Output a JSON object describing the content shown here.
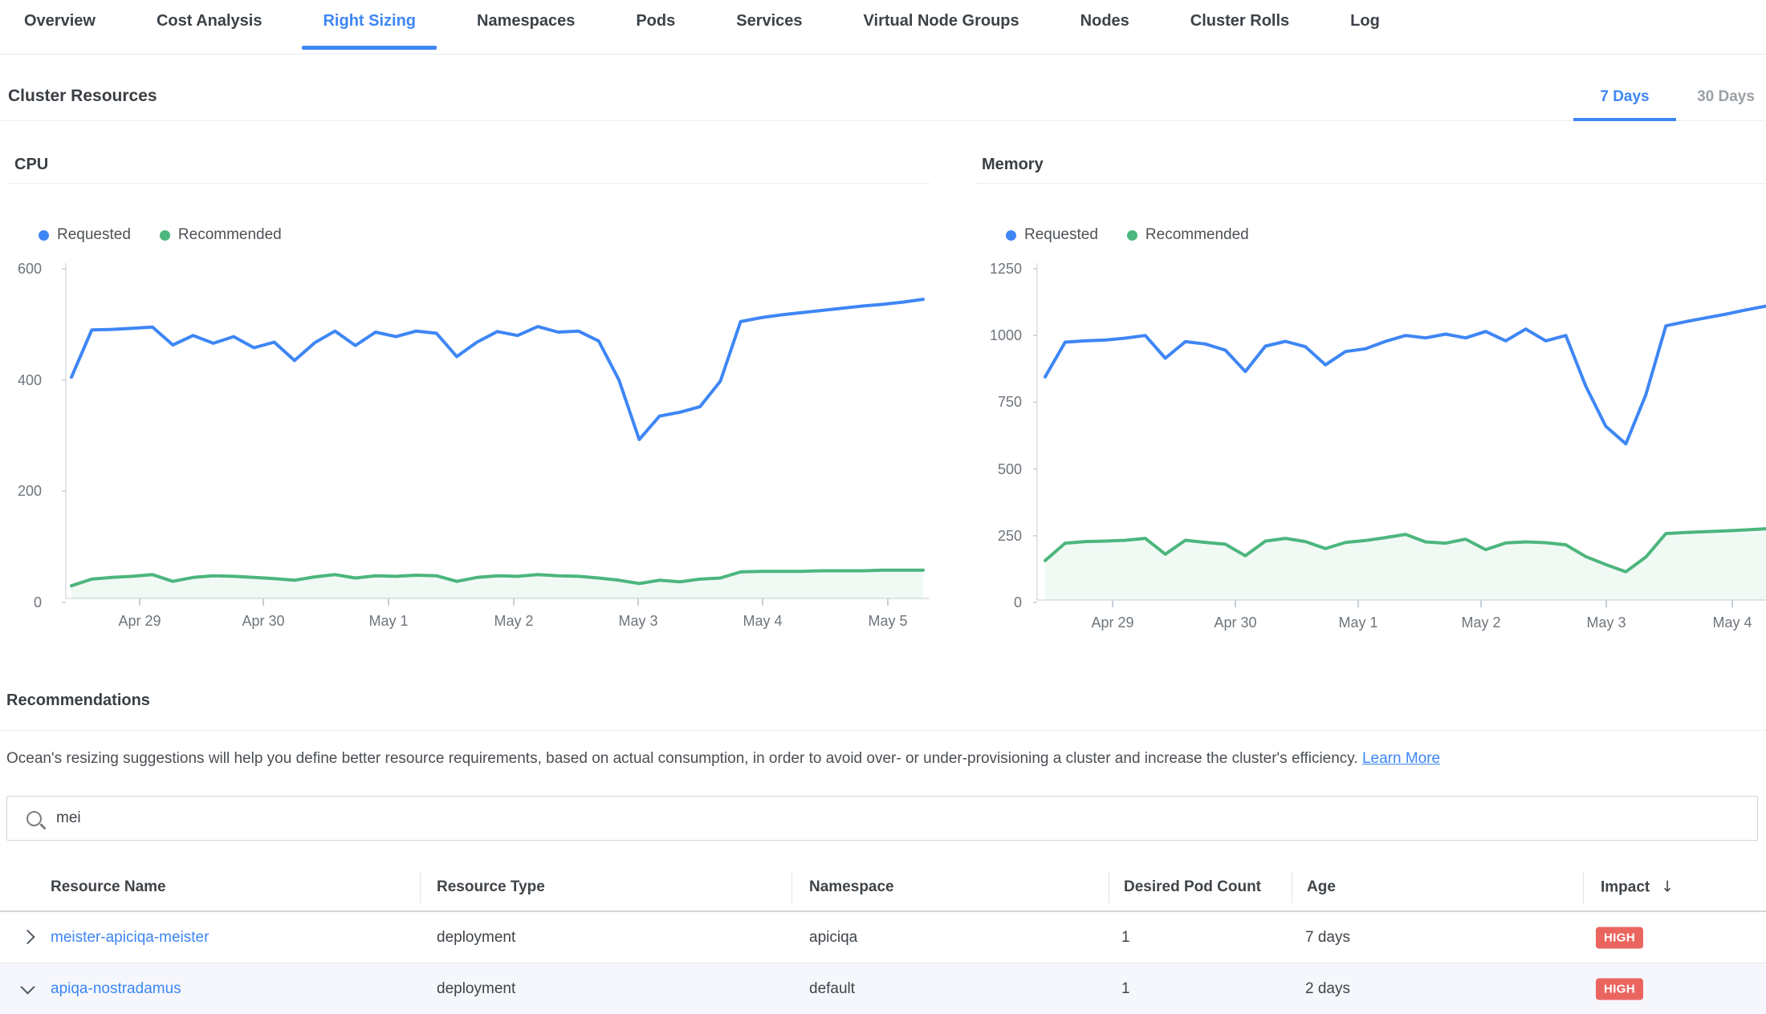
{
  "tabs": [
    {
      "label": "Overview",
      "active": false
    },
    {
      "label": "Cost Analysis",
      "active": false
    },
    {
      "label": "Right Sizing",
      "active": true
    },
    {
      "label": "Namespaces",
      "active": false
    },
    {
      "label": "Pods",
      "active": false
    },
    {
      "label": "Services",
      "active": false
    },
    {
      "label": "Virtual Node Groups",
      "active": false
    },
    {
      "label": "Nodes",
      "active": false
    },
    {
      "label": "Cluster Rolls",
      "active": false
    },
    {
      "label": "Log",
      "active": false
    }
  ],
  "section": {
    "title": "Cluster Resources",
    "periods": [
      "7 Days",
      "30 Days"
    ],
    "selected_period": "7 Days"
  },
  "chart_data": [
    {
      "type": "line",
      "title": "CPU",
      "xlabel": "",
      "ylabel": "",
      "grid": false,
      "legend_position": "top-left",
      "x_tick_labels": [
        "Apr 29",
        "Apr 30",
        "May 1",
        "May 2",
        "May 3",
        "May 4",
        "May 5"
      ],
      "y_ticks": [
        0,
        200,
        400,
        600
      ],
      "ylim": [
        0,
        600
      ],
      "series": [
        {
          "name": "Requested",
          "color": "#3e86f5",
          "values": [
            405,
            490,
            491,
            493,
            495,
            463,
            480,
            466,
            478,
            458,
            468,
            435,
            467,
            488,
            462,
            486,
            478,
            488,
            484,
            442,
            468,
            487,
            480,
            496,
            486,
            488,
            470,
            400,
            293,
            335,
            342,
            352,
            398,
            505,
            512,
            517,
            521,
            525,
            529,
            533,
            536,
            540,
            545
          ]
        },
        {
          "name": "Recommended",
          "color": "#4cb67d",
          "fill": "rgba(76,182,125,0.08)",
          "values": [
            30,
            42,
            45,
            47,
            50,
            38,
            45,
            48,
            47,
            45,
            43,
            40,
            46,
            50,
            44,
            48,
            47,
            49,
            48,
            38,
            45,
            48,
            47,
            50,
            48,
            47,
            44,
            40,
            34,
            40,
            37,
            42,
            44,
            55,
            56,
            56,
            56,
            57,
            57,
            57,
            58,
            58,
            58
          ]
        }
      ]
    },
    {
      "type": "line",
      "title": "Memory",
      "xlabel": "",
      "ylabel": "",
      "grid": false,
      "legend_position": "top-left",
      "x_tick_labels": [
        "Apr 29",
        "Apr 30",
        "May 1",
        "May 2",
        "May 3",
        "May 4"
      ],
      "y_ticks": [
        0,
        250,
        500,
        750,
        1000,
        1250
      ],
      "ylim": [
        0,
        1250
      ],
      "series": [
        {
          "name": "Requested",
          "color": "#3e86f5",
          "values": [
            845,
            975,
            980,
            983,
            990,
            1000,
            915,
            977,
            968,
            945,
            865,
            960,
            978,
            958,
            890,
            940,
            950,
            978,
            1000,
            991,
            1005,
            991,
            1015,
            980,
            1024,
            980,
            1000,
            810,
            660,
            594,
            778,
            1036,
            1052,
            1066,
            1080,
            1096,
            1110
          ]
        },
        {
          "name": "Recommended",
          "color": "#4cb67d",
          "fill": "rgba(76,182,125,0.08)",
          "values": [
            157,
            222,
            228,
            230,
            233,
            240,
            181,
            233,
            225,
            218,
            175,
            230,
            240,
            228,
            202,
            225,
            232,
            243,
            255,
            227,
            222,
            237,
            198,
            223,
            227,
            224,
            216,
            172,
            142,
            115,
            170,
            258,
            262,
            265,
            268,
            272,
            276
          ]
        }
      ]
    }
  ],
  "recommendations": {
    "title": "Recommendations",
    "description": "Ocean's resizing suggestions will help you define better resource requirements, based on actual consumption, in order to avoid over- or under-provisioning a cluster and increase the cluster's efficiency.",
    "learn_more_label": "Learn More"
  },
  "search": {
    "value": "mei"
  },
  "table": {
    "columns": [
      "Resource Name",
      "Resource Type",
      "Namespace",
      "Desired Pod Count",
      "Age",
      "Impact"
    ],
    "sort": {
      "column": "Impact",
      "direction": "desc"
    },
    "rows": [
      {
        "expanded": false,
        "name": "meister-apiciqa-meister",
        "type": "deployment",
        "namespace": "apiciqa",
        "desired_pod_count": "1",
        "age": "7 days",
        "impact": "HIGH"
      },
      {
        "expanded": true,
        "name": "apiqa-nostradamus",
        "type": "deployment",
        "namespace": "default",
        "desired_pod_count": "1",
        "age": "2 days",
        "impact": "HIGH"
      }
    ]
  },
  "colors": {
    "accent_blue": "#3d86f5",
    "series_requested": "#3e86f5",
    "series_recommended": "#4cb67d",
    "impact_high_bg": "#eb655f",
    "link": "#3d86f5"
  }
}
